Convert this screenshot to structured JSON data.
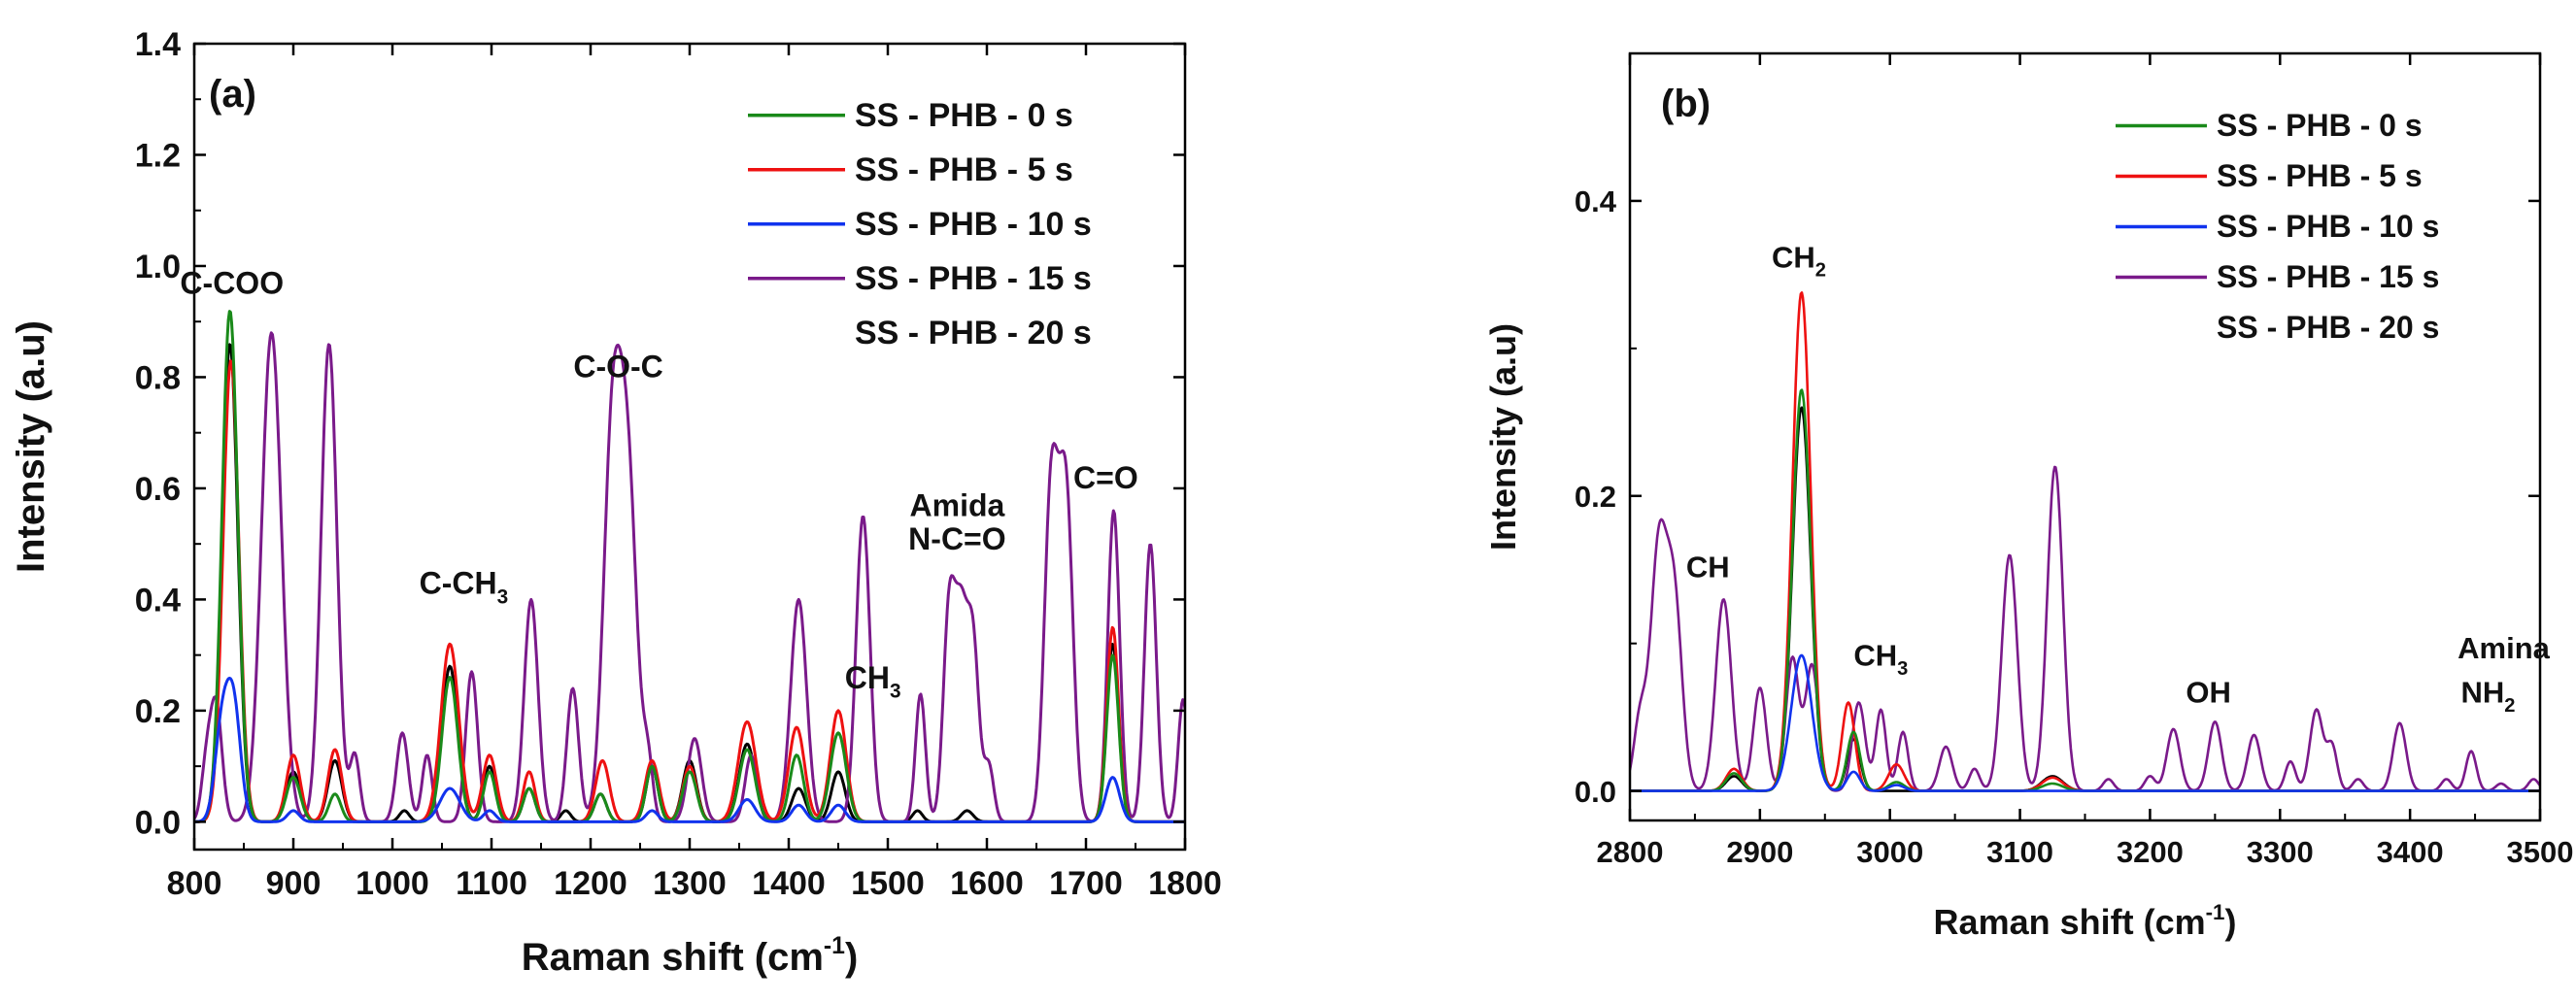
{
  "chart_data": [
    {
      "type": "line",
      "panel_label": "(a)",
      "xlabel": "Raman shift (cm",
      "xlabel_sup": "-1",
      "xlabel_end": ")",
      "ylabel": "Intensity (a.u)",
      "xlim": [
        800,
        1800
      ],
      "ylim": [
        -0.05,
        1.4
      ],
      "xticks": [
        "800",
        "900",
        "1000",
        "1100",
        "1200",
        "1300",
        "1400",
        "1500",
        "1600",
        "1700",
        "1800"
      ],
      "yticks": [
        "0.0",
        "0.2",
        "0.4",
        "0.6",
        "0.8",
        "1.0",
        "1.2",
        "1.4"
      ],
      "xtick_values": [
        800,
        900,
        1000,
        1100,
        1200,
        1300,
        1400,
        1500,
        1600,
        1700,
        1800
      ],
      "ytick_values": [
        0,
        0.2,
        0.4,
        0.6,
        0.8,
        1.0,
        1.2,
        1.4
      ],
      "legend": [
        {
          "name": "SS - PHB - 0 s",
          "color": "#1a8a1a",
          "line": true
        },
        {
          "name": "SS - PHB - 5 s",
          "color": "#ee1111",
          "line": true
        },
        {
          "name": "SS - PHB - 10 s",
          "color": "#1133ee",
          "line": true
        },
        {
          "name": "SS - PHB - 15 s",
          "color": "#7a1a8a",
          "line": true
        },
        {
          "name": "SS - PHB - 20 s",
          "color": "#000000",
          "line": false
        }
      ],
      "annotations": [
        {
          "text": "C-COO",
          "x": 838,
          "y": 0.95
        },
        {
          "text": "C-O-C",
          "x": 1228,
          "y": 0.8
        },
        {
          "text": "C-CH",
          "sub": "3",
          "x": 1072,
          "y": 0.41
        },
        {
          "text": "Amida",
          "x": 1570,
          "y": 0.55
        },
        {
          "text": "N-C=O",
          "x": 1570,
          "y": 0.49
        },
        {
          "text": "C=O",
          "x": 1720,
          "y": 0.6
        },
        {
          "text": "CH",
          "sub": "3",
          "x": 1485,
          "y": 0.24
        }
      ],
      "series": [
        {
          "name": "SS - PHB - 0 s",
          "color": "#1a8a1a",
          "peaks": [
            [
              836,
              0.92,
              8
            ],
            [
              900,
              0.08,
              7
            ],
            [
              942,
              0.05,
              6
            ],
            [
              1058,
              0.26,
              8
            ],
            [
              1098,
              0.09,
              6
            ],
            [
              1138,
              0.06,
              6
            ],
            [
              1210,
              0.05,
              6
            ],
            [
              1262,
              0.1,
              6
            ],
            [
              1300,
              0.09,
              7
            ],
            [
              1358,
              0.13,
              8
            ],
            [
              1408,
              0.12,
              7
            ],
            [
              1450,
              0.16,
              8
            ],
            [
              1727,
              0.3,
              6
            ]
          ]
        },
        {
          "name": "SS - PHB - 5 s",
          "color": "#ee1111",
          "peaks": [
            [
              837,
              0.83,
              8
            ],
            [
              900,
              0.12,
              7
            ],
            [
              942,
              0.13,
              7
            ],
            [
              1058,
              0.32,
              9
            ],
            [
              1098,
              0.12,
              7
            ],
            [
              1138,
              0.09,
              6
            ],
            [
              1212,
              0.11,
              7
            ],
            [
              1262,
              0.11,
              7
            ],
            [
              1300,
              0.1,
              7
            ],
            [
              1358,
              0.18,
              9
            ],
            [
              1408,
              0.17,
              8
            ],
            [
              1450,
              0.2,
              8
            ],
            [
              1727,
              0.35,
              6
            ]
          ]
        },
        {
          "name": "SS - PHB - 10 s",
          "color": "#1133ee",
          "peaks": [
            [
              828,
              0.17,
              7
            ],
            [
              840,
              0.2,
              7
            ],
            [
              900,
              0.02,
              6
            ],
            [
              1058,
              0.06,
              10
            ],
            [
              1098,
              0.02,
              6
            ],
            [
              1262,
              0.02,
              6
            ],
            [
              1358,
              0.04,
              8
            ],
            [
              1410,
              0.03,
              7
            ],
            [
              1450,
              0.03,
              7
            ],
            [
              1727,
              0.08,
              7
            ]
          ]
        },
        {
          "name": "SS - PHB - 15 s",
          "color": "#7a1a8a",
          "peaks": [
            [
              812,
              0.09,
              5
            ],
            [
              822,
              0.21,
              6
            ],
            [
              878,
              0.88,
              10
            ],
            [
              936,
              0.86,
              8
            ],
            [
              962,
              0.12,
              5
            ],
            [
              1010,
              0.16,
              6
            ],
            [
              1035,
              0.12,
              5
            ],
            [
              1080,
              0.27,
              6
            ],
            [
              1140,
              0.4,
              7
            ],
            [
              1182,
              0.24,
              6
            ],
            [
              1222,
              0.68,
              9
            ],
            [
              1238,
              0.58,
              9
            ],
            [
              1258,
              0.1,
              5
            ],
            [
              1305,
              0.15,
              7
            ],
            [
              1362,
              0.12,
              6
            ],
            [
              1410,
              0.4,
              8
            ],
            [
              1475,
              0.55,
              7
            ],
            [
              1533,
              0.23,
              5
            ],
            [
              1562,
              0.38,
              6
            ],
            [
              1574,
              0.33,
              6
            ],
            [
              1586,
              0.32,
              6
            ],
            [
              1602,
              0.1,
              5
            ],
            [
              1665,
              0.6,
              7
            ],
            [
              1680,
              0.58,
              7
            ],
            [
              1728,
              0.56,
              6
            ],
            [
              1765,
              0.5,
              6
            ],
            [
              1798,
              0.22,
              5
            ]
          ]
        },
        {
          "name": "SS - PHB - 20 s",
          "color": "#000000",
          "peaks": [
            [
              836,
              0.86,
              8
            ],
            [
              900,
              0.09,
              7
            ],
            [
              942,
              0.11,
              7
            ],
            [
              1012,
              0.02,
              5
            ],
            [
              1058,
              0.28,
              8
            ],
            [
              1098,
              0.1,
              6
            ],
            [
              1138,
              0.06,
              6
            ],
            [
              1175,
              0.02,
              5
            ],
            [
              1210,
              0.05,
              6
            ],
            [
              1262,
              0.1,
              6
            ],
            [
              1300,
              0.11,
              7
            ],
            [
              1358,
              0.14,
              8
            ],
            [
              1410,
              0.06,
              7
            ],
            [
              1450,
              0.09,
              7
            ],
            [
              1530,
              0.02,
              5
            ],
            [
              1580,
              0.02,
              6
            ],
            [
              1727,
              0.32,
              6
            ]
          ]
        }
      ]
    },
    {
      "type": "line",
      "panel_label": "(b)",
      "xlabel": "Raman shift (cm",
      "xlabel_sup": "-1",
      "xlabel_end": ")",
      "ylabel": "Intensity (a.u)",
      "xlim": [
        2800,
        3500
      ],
      "ylim": [
        -0.02,
        0.5
      ],
      "xticks": [
        "2800",
        "2900",
        "3000",
        "3100",
        "3200",
        "3300",
        "3400",
        "3500"
      ],
      "yticks": [
        "0.0",
        "0.2",
        "0.4"
      ],
      "xtick_values": [
        2800,
        2900,
        3000,
        3100,
        3200,
        3300,
        3400,
        3500
      ],
      "ytick_values": [
        0,
        0.2,
        0.4
      ],
      "legend": [
        {
          "name": "SS - PHB - 0 s",
          "color": "#1a8a1a",
          "line": true
        },
        {
          "name": "SS - PHB - 5 s",
          "color": "#ee1111",
          "line": true
        },
        {
          "name": "SS - PHB - 10 s",
          "color": "#1133ee",
          "line": true
        },
        {
          "name": "SS - PHB - 15 s",
          "color": "#7a1a8a",
          "line": true
        },
        {
          "name": "SS - PHB - 20 s",
          "color": "#000000",
          "line": false
        }
      ],
      "annotations": [
        {
          "text": "CH",
          "sub": "2",
          "x": 2930,
          "y": 0.355
        },
        {
          "text": "CH",
          "x": 2860,
          "y": 0.145
        },
        {
          "text": "CH",
          "sub": "3",
          "x": 2993,
          "y": 0.085
        },
        {
          "text": "OH",
          "x": 3245,
          "y": 0.06
        },
        {
          "text": "Amina",
          "x": 3472,
          "y": 0.09
        },
        {
          "text": "NH",
          "sub": "2",
          "x": 3460,
          "y": 0.06
        }
      ],
      "series": [
        {
          "name": "SS - PHB - 0 s",
          "color": "#1a8a1a",
          "peaks": [
            [
              2880,
              0.012,
              6
            ],
            [
              2932,
              0.272,
              7
            ],
            [
              2972,
              0.04,
              5
            ],
            [
              3005,
              0.006,
              6
            ],
            [
              3125,
              0.005,
              8
            ]
          ]
        },
        {
          "name": "SS - PHB - 5 s",
          "color": "#ee1111",
          "peaks": [
            [
              2880,
              0.015,
              6
            ],
            [
              2932,
              0.338,
              7
            ],
            [
              2968,
              0.06,
              5
            ],
            [
              3005,
              0.018,
              6
            ],
            [
              3125,
              0.009,
              8
            ]
          ]
        },
        {
          "name": "SS - PHB - 10 s",
          "color": "#1133ee",
          "peaks": [
            [
              2932,
              0.092,
              8
            ],
            [
              2972,
              0.013,
              5
            ],
            [
              3005,
              0.004,
              6
            ]
          ]
        },
        {
          "name": "SS - PHB - 15 s",
          "color": "#7a1a8a",
          "peaks": [
            [
              2808,
              0.05,
              5
            ],
            [
              2822,
              0.16,
              6
            ],
            [
              2834,
              0.13,
              6
            ],
            [
              2872,
              0.13,
              6
            ],
            [
              2900,
              0.07,
              5
            ],
            [
              2925,
              0.09,
              5
            ],
            [
              2940,
              0.085,
              5
            ],
            [
              2976,
              0.06,
              5
            ],
            [
              2993,
              0.055,
              4
            ],
            [
              3010,
              0.04,
              4
            ],
            [
              3043,
              0.03,
              5
            ],
            [
              3065,
              0.015,
              4
            ],
            [
              3092,
              0.16,
              6
            ],
            [
              3127,
              0.22,
              6
            ],
            [
              3168,
              0.008,
              4
            ],
            [
              3200,
              0.01,
              4
            ],
            [
              3218,
              0.042,
              5
            ],
            [
              3250,
              0.047,
              5
            ],
            [
              3280,
              0.038,
              5
            ],
            [
              3308,
              0.02,
              4
            ],
            [
              3328,
              0.055,
              5
            ],
            [
              3340,
              0.03,
              4
            ],
            [
              3360,
              0.008,
              4
            ],
            [
              3392,
              0.046,
              5
            ],
            [
              3428,
              0.008,
              4
            ],
            [
              3447,
              0.027,
              4
            ],
            [
              3470,
              0.005,
              4
            ],
            [
              3495,
              0.008,
              4
            ]
          ]
        },
        {
          "name": "SS - PHB - 20 s",
          "color": "#000000",
          "peaks": [
            [
              2880,
              0.01,
              6
            ],
            [
              2932,
              0.26,
              7
            ],
            [
              2972,
              0.035,
              5
            ],
            [
              3125,
              0.01,
              8
            ]
          ]
        }
      ]
    }
  ]
}
